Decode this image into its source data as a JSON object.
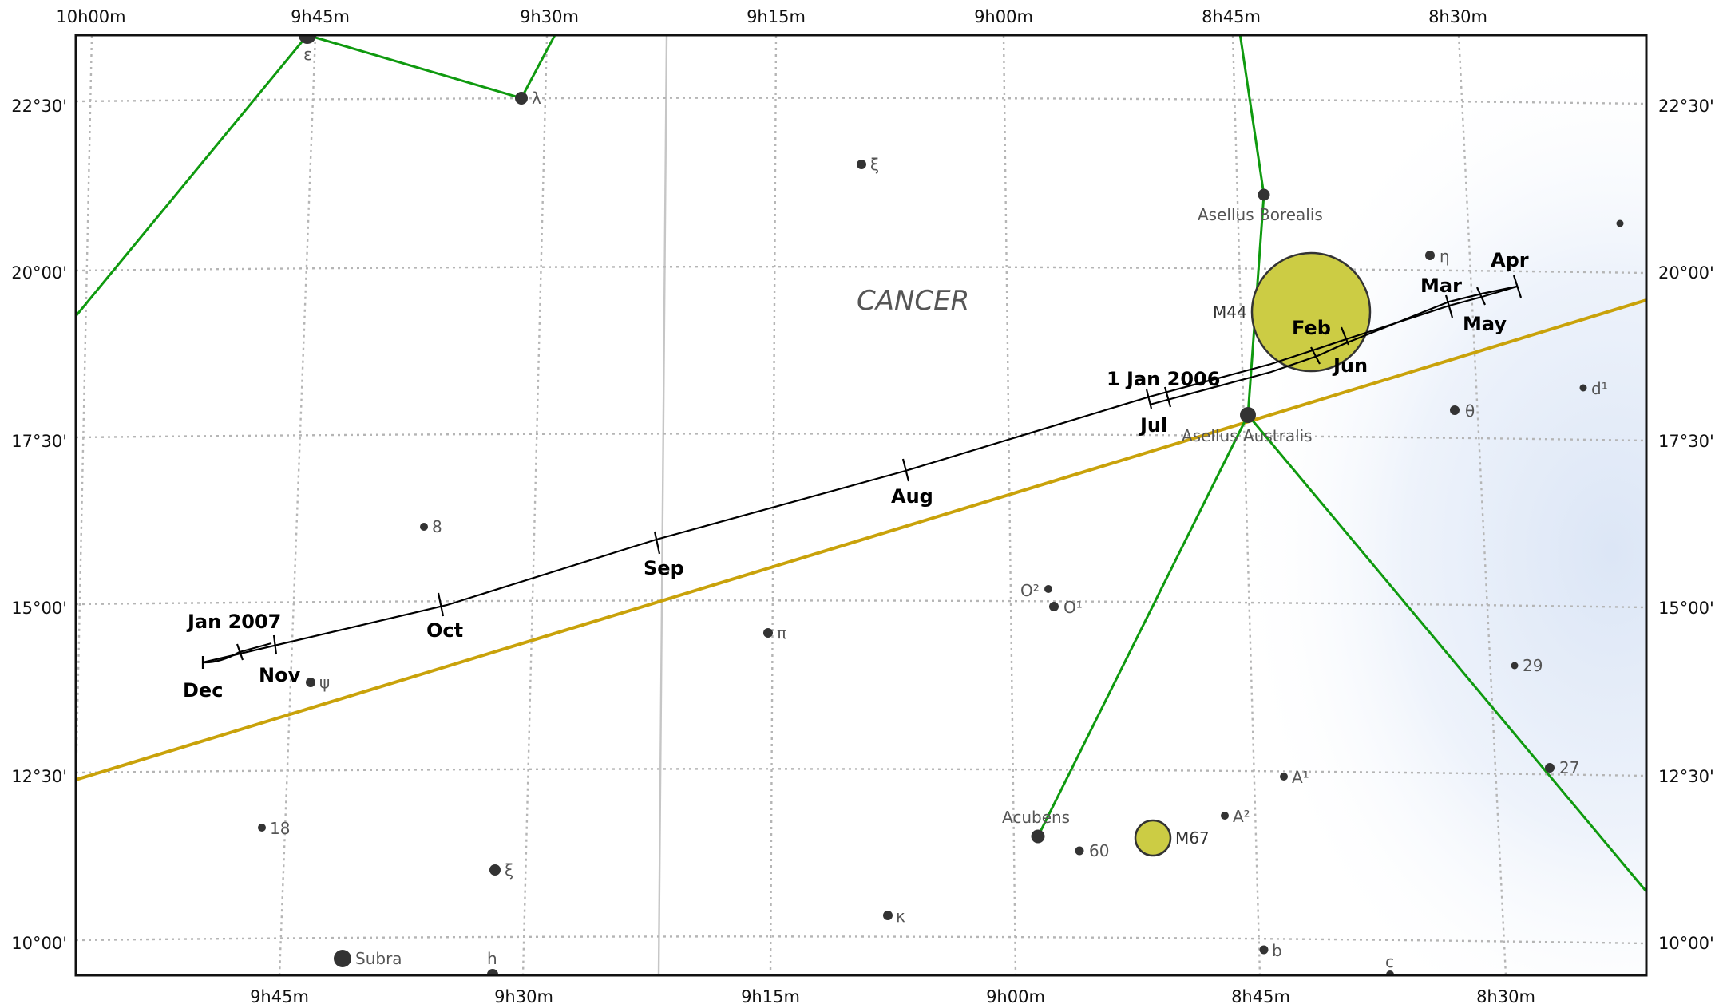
{
  "constellation": "CANCER",
  "axes": {
    "ra_top": [
      "10h00m",
      "9h45m",
      "9h30m",
      "9h15m",
      "9h00m",
      "8h45m",
      "8h30m"
    ],
    "ra_bottom": [
      "9h45m",
      "9h30m",
      "9h15m",
      "9h00m",
      "8h45m",
      "8h30m"
    ],
    "dec_left": [
      "22°30'",
      "20°00'",
      "17°30'",
      "15°00'",
      "12°30'",
      "10°00'"
    ],
    "dec_right": [
      "22°30'",
      "20°00'",
      "17°30'",
      "15°00'",
      "12°30'",
      "10°00'"
    ]
  },
  "stars": [
    {
      "label": "ε"
    },
    {
      "label": "λ"
    },
    {
      "label": "ξ"
    },
    {
      "label": "Asellus Borealis"
    },
    {
      "label": "η"
    },
    {
      "label": ""
    },
    {
      "label": "d¹"
    },
    {
      "label": "θ"
    },
    {
      "label": "Asellus Australis"
    },
    {
      "label": "8"
    },
    {
      "label": "O²"
    },
    {
      "label": "O¹"
    },
    {
      "label": "π"
    },
    {
      "label": "ψ"
    },
    {
      "label": "29"
    },
    {
      "label": "27"
    },
    {
      "label": "A¹"
    },
    {
      "label": "A²"
    },
    {
      "label": "18"
    },
    {
      "label": "Acubens"
    },
    {
      "label": "60"
    },
    {
      "label": "ξ"
    },
    {
      "label": "κ"
    },
    {
      "label": "Subra"
    },
    {
      "label": "h"
    },
    {
      "label": "b"
    },
    {
      "label": "c"
    }
  ],
  "deep_sky": [
    {
      "label": "M44"
    },
    {
      "label": "M67"
    }
  ],
  "path_dates": {
    "start": "1 Jan 2006",
    "feb": "Feb",
    "mar": "Mar",
    "apr": "Apr",
    "may": "May",
    "jun": "Jun",
    "jul": "Jul",
    "aug": "Aug",
    "sep": "Sep",
    "oct": "Oct",
    "nov": "Nov",
    "dec": "Dec",
    "end": "Jan 2007"
  },
  "colors": {
    "constellation_lines": "#0f9a0f",
    "ecliptic": "#c9a20a",
    "deep_sky_fill": "#cccc44",
    "path": "#000000"
  }
}
